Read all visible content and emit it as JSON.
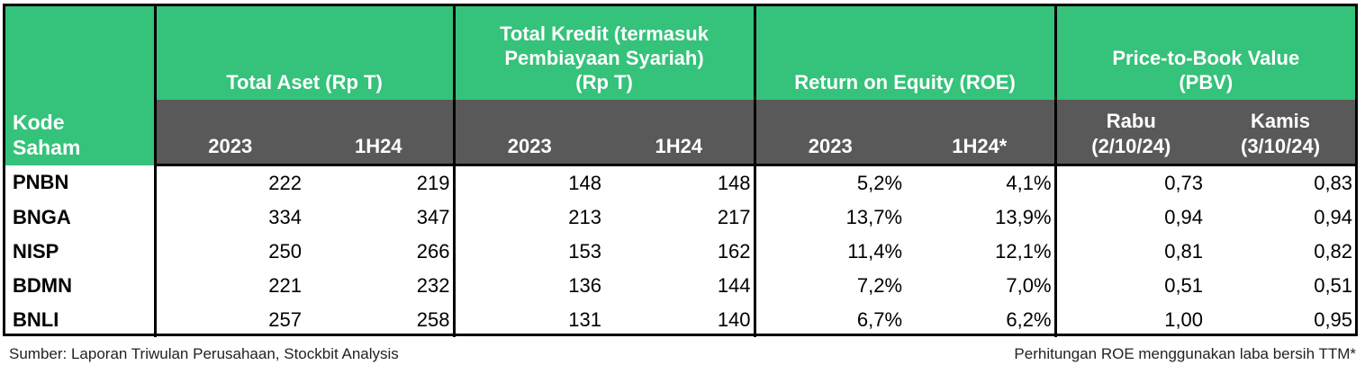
{
  "table": {
    "kode_header": [
      "Kode",
      "Saham"
    ],
    "groups": [
      {
        "title": [
          "Total Aset (Rp T)"
        ],
        "sub": [
          "2023",
          "1H24"
        ]
      },
      {
        "title": [
          "Total Kredit (termasuk",
          "Pembiayaan Syariah)",
          "(Rp T)"
        ],
        "sub": [
          "2023",
          "1H24"
        ]
      },
      {
        "title": [
          "Return on Equity (ROE)"
        ],
        "sub": [
          "2023",
          "1H24*"
        ]
      },
      {
        "title": [
          "Price-to-Book Value",
          "(PBV)"
        ],
        "sub": [
          [
            "Rabu",
            "(2/10/24)"
          ],
          [
            "Kamis",
            "(3/10/24)"
          ]
        ]
      }
    ],
    "rows": [
      {
        "code": "PNBN",
        "values": [
          "222",
          "219",
          "148",
          "148",
          "5,2%",
          "4,1%",
          "0,73",
          "0,83"
        ]
      },
      {
        "code": "BNGA",
        "values": [
          "334",
          "347",
          "213",
          "217",
          "13,7%",
          "13,9%",
          "0,94",
          "0,94"
        ]
      },
      {
        "code": "NISP",
        "values": [
          "250",
          "266",
          "153",
          "162",
          "11,4%",
          "12,1%",
          "0,81",
          "0,82"
        ]
      },
      {
        "code": "BDMN",
        "values": [
          "221",
          "232",
          "136",
          "144",
          "7,2%",
          "7,0%",
          "0,51",
          "0,51"
        ]
      },
      {
        "code": "BNLI",
        "values": [
          "257",
          "258",
          "131",
          "140",
          "6,7%",
          "6,2%",
          "1,00",
          "0,95"
        ]
      }
    ]
  },
  "footer": {
    "source": "Sumber: Laporan Triwulan Perusahaan, Stockbit Analysis",
    "note": "Perhitungan ROE menggunakan laba bersih TTM*"
  },
  "colors": {
    "header_green": "#35c27a",
    "header_dark": "#595959"
  }
}
